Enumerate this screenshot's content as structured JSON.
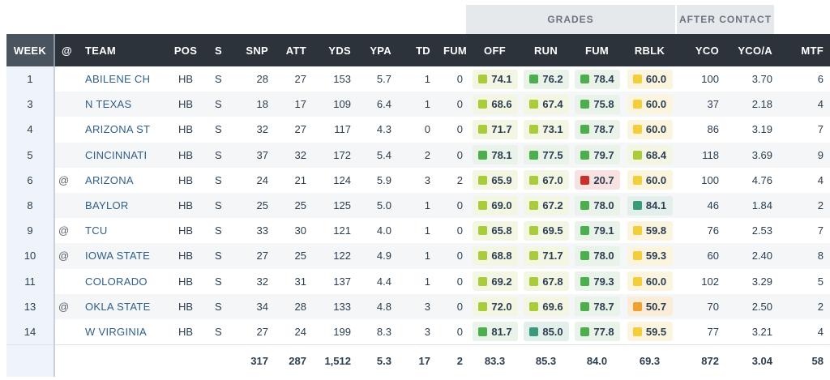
{
  "group_headers": {
    "grades": "GRADES",
    "after_contact": "AFTER CONTACT"
  },
  "columns": [
    "WEEK",
    "@",
    "TEAM",
    "POS",
    "S",
    "SNP",
    "ATT",
    "YDS",
    "YPA",
    "TD",
    "FUM",
    "OFF",
    "RUN",
    "FUM",
    "RBLK",
    "YCO",
    "YCO/A",
    "MTF"
  ],
  "grade_colors": {
    "yellow": "#f4cd3a",
    "light_green": "#a8cc3c",
    "green": "#4cae4c",
    "teal": "#3a9a7a",
    "red": "#c8302c",
    "orange": "#f0a030",
    "bg_yellow": "#fbf5df",
    "bg_light_green": "#f2f6e3",
    "bg_green": "#e9f3e9",
    "bg_teal": "#e3efea",
    "bg_red": "#f7e1e1",
    "bg_orange": "#fbecd8"
  },
  "rows": [
    {
      "week": "1",
      "at": "",
      "team": "ABILENE CH",
      "pos": "HB",
      "s": "S",
      "snp": "28",
      "att": "27",
      "yds": "153",
      "ypa": "5.7",
      "td": "1",
      "fum": "0",
      "off": {
        "v": "74.1",
        "c": "light_green"
      },
      "run": {
        "v": "76.2",
        "c": "green"
      },
      "gfum": {
        "v": "78.4",
        "c": "green"
      },
      "rblk": {
        "v": "60.0",
        "c": "yellow"
      },
      "yco": "100",
      "ycoa": "3.70",
      "mtf": "6"
    },
    {
      "week": "3",
      "at": "",
      "team": "N TEXAS",
      "pos": "HB",
      "s": "S",
      "snp": "18",
      "att": "17",
      "yds": "109",
      "ypa": "6.4",
      "td": "1",
      "fum": "0",
      "off": {
        "v": "68.6",
        "c": "light_green"
      },
      "run": {
        "v": "67.4",
        "c": "light_green"
      },
      "gfum": {
        "v": "75.8",
        "c": "green"
      },
      "rblk": {
        "v": "60.0",
        "c": "yellow"
      },
      "yco": "37",
      "ycoa": "2.18",
      "mtf": "4"
    },
    {
      "week": "4",
      "at": "",
      "team": "ARIZONA ST",
      "pos": "HB",
      "s": "S",
      "snp": "32",
      "att": "27",
      "yds": "117",
      "ypa": "4.3",
      "td": "0",
      "fum": "0",
      "off": {
        "v": "71.7",
        "c": "light_green"
      },
      "run": {
        "v": "73.1",
        "c": "light_green"
      },
      "gfum": {
        "v": "78.7",
        "c": "green"
      },
      "rblk": {
        "v": "60.0",
        "c": "yellow"
      },
      "yco": "86",
      "ycoa": "3.19",
      "mtf": "7"
    },
    {
      "week": "5",
      "at": "",
      "team": "CINCINNATI",
      "pos": "HB",
      "s": "S",
      "snp": "37",
      "att": "32",
      "yds": "172",
      "ypa": "5.4",
      "td": "2",
      "fum": "0",
      "off": {
        "v": "78.1",
        "c": "green"
      },
      "run": {
        "v": "77.5",
        "c": "green"
      },
      "gfum": {
        "v": "79.7",
        "c": "green"
      },
      "rblk": {
        "v": "68.4",
        "c": "light_green"
      },
      "yco": "118",
      "ycoa": "3.69",
      "mtf": "9"
    },
    {
      "week": "6",
      "at": "@",
      "team": "ARIZONA",
      "pos": "HB",
      "s": "S",
      "snp": "24",
      "att": "21",
      "yds": "124",
      "ypa": "5.9",
      "td": "3",
      "fum": "2",
      "off": {
        "v": "65.9",
        "c": "light_green"
      },
      "run": {
        "v": "67.0",
        "c": "light_green"
      },
      "gfum": {
        "v": "20.7",
        "c": "red"
      },
      "rblk": {
        "v": "60.0",
        "c": "yellow"
      },
      "yco": "100",
      "ycoa": "4.76",
      "mtf": "4"
    },
    {
      "week": "8",
      "at": "",
      "team": "BAYLOR",
      "pos": "HB",
      "s": "S",
      "snp": "25",
      "att": "25",
      "yds": "125",
      "ypa": "5.0",
      "td": "1",
      "fum": "0",
      "off": {
        "v": "69.0",
        "c": "light_green"
      },
      "run": {
        "v": "67.2",
        "c": "light_green"
      },
      "gfum": {
        "v": "78.0",
        "c": "green"
      },
      "rblk": {
        "v": "84.1",
        "c": "teal"
      },
      "yco": "46",
      "ycoa": "1.84",
      "mtf": "2"
    },
    {
      "week": "9",
      "at": "@",
      "team": "TCU",
      "pos": "HB",
      "s": "S",
      "snp": "33",
      "att": "30",
      "yds": "121",
      "ypa": "4.0",
      "td": "1",
      "fum": "0",
      "off": {
        "v": "65.8",
        "c": "light_green"
      },
      "run": {
        "v": "69.5",
        "c": "light_green"
      },
      "gfum": {
        "v": "79.1",
        "c": "green"
      },
      "rblk": {
        "v": "59.8",
        "c": "yellow"
      },
      "yco": "76",
      "ycoa": "2.53",
      "mtf": "7"
    },
    {
      "week": "10",
      "at": "@",
      "team": "IOWA STATE",
      "pos": "HB",
      "s": "S",
      "snp": "27",
      "att": "25",
      "yds": "122",
      "ypa": "4.9",
      "td": "1",
      "fum": "0",
      "off": {
        "v": "68.8",
        "c": "light_green"
      },
      "run": {
        "v": "71.7",
        "c": "light_green"
      },
      "gfum": {
        "v": "78.0",
        "c": "green"
      },
      "rblk": {
        "v": "59.3",
        "c": "yellow"
      },
      "yco": "60",
      "ycoa": "2.40",
      "mtf": "8"
    },
    {
      "week": "11",
      "at": "",
      "team": "COLORADO",
      "pos": "HB",
      "s": "S",
      "snp": "32",
      "att": "31",
      "yds": "137",
      "ypa": "4.4",
      "td": "1",
      "fum": "0",
      "off": {
        "v": "69.2",
        "c": "light_green"
      },
      "run": {
        "v": "67.8",
        "c": "light_green"
      },
      "gfum": {
        "v": "79.3",
        "c": "green"
      },
      "rblk": {
        "v": "60.0",
        "c": "yellow"
      },
      "yco": "102",
      "ycoa": "3.29",
      "mtf": "5"
    },
    {
      "week": "13",
      "at": "@",
      "team": "OKLA STATE",
      "pos": "HB",
      "s": "S",
      "snp": "34",
      "att": "28",
      "yds": "133",
      "ypa": "4.8",
      "td": "3",
      "fum": "0",
      "off": {
        "v": "72.0",
        "c": "light_green"
      },
      "run": {
        "v": "69.6",
        "c": "light_green"
      },
      "gfum": {
        "v": "78.7",
        "c": "green"
      },
      "rblk": {
        "v": "50.7",
        "c": "orange"
      },
      "yco": "70",
      "ycoa": "2.50",
      "mtf": "2"
    },
    {
      "week": "14",
      "at": "",
      "team": "W VIRGINIA",
      "pos": "HB",
      "s": "S",
      "snp": "27",
      "att": "24",
      "yds": "199",
      "ypa": "8.3",
      "td": "3",
      "fum": "0",
      "off": {
        "v": "81.7",
        "c": "green"
      },
      "run": {
        "v": "85.0",
        "c": "teal"
      },
      "gfum": {
        "v": "77.8",
        "c": "green"
      },
      "rblk": {
        "v": "59.5",
        "c": "yellow"
      },
      "yco": "77",
      "ycoa": "3.21",
      "mtf": "4"
    }
  ],
  "totals": {
    "snp": "317",
    "att": "287",
    "yds": "1,512",
    "ypa": "5.3",
    "td": "17",
    "fum": "2",
    "off": "83.3",
    "run": "85.3",
    "gfum": "84.0",
    "rblk": "69.3",
    "yco": "872",
    "ycoa": "3.04",
    "mtf": "58"
  }
}
